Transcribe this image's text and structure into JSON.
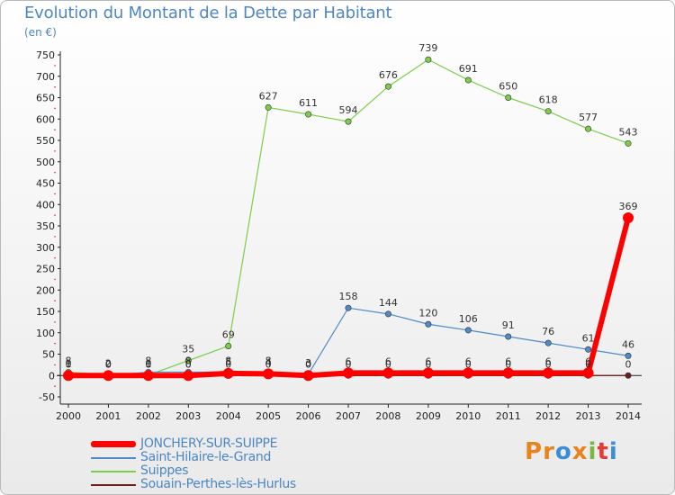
{
  "chart_data": {
    "type": "line",
    "title": "Evolution du Montant de la Dette par Habitant",
    "subtitle": "(en €)",
    "x": [
      "2000",
      "2001",
      "2002",
      "2003",
      "2004",
      "2005",
      "2006",
      "2007",
      "2008",
      "2009",
      "2010",
      "2011",
      "2012",
      "2013",
      "2014"
    ],
    "yticks": [
      -50,
      0,
      50,
      100,
      150,
      200,
      250,
      300,
      350,
      400,
      450,
      500,
      550,
      600,
      650,
      700,
      750
    ],
    "ylim": [
      -50,
      750
    ],
    "grid": false,
    "legend_position": "bottom-left",
    "series": [
      {
        "name": "JONCHERY-SUR-SUIPPE",
        "color": "#ff0000",
        "values": [
          0,
          0,
          0,
          0,
          5,
          4,
          0,
          6,
          6,
          6,
          6,
          6,
          6,
          6,
          369
        ],
        "labels": [
          "0",
          "0",
          "0",
          "0",
          "5",
          "4",
          "0",
          "6",
          "6",
          "6",
          "6",
          "6",
          "6",
          "6",
          "369"
        ]
      },
      {
        "name": "Saint-Hilaire-le-Grand",
        "color": "#4f8bc8",
        "values": [
          1,
          0,
          8,
          8,
          8,
          8,
          3,
          158,
          144,
          120,
          106,
          91,
          76,
          61,
          46
        ],
        "labels": [
          "1",
          "0",
          "8",
          "8",
          "8",
          "8",
          "3",
          "158",
          "144",
          "120",
          "106",
          "91",
          "76",
          "61",
          "46"
        ]
      },
      {
        "name": "Suippes",
        "color": "#7ccd4a",
        "values": [
          8,
          2,
          1,
          35,
          69,
          627,
          611,
          594,
          676,
          739,
          691,
          650,
          618,
          577,
          543
        ],
        "labels": [
          "8",
          "2",
          "1",
          "35",
          "69",
          "627",
          "611",
          "594",
          "676",
          "739",
          "691",
          "650",
          "618",
          "577",
          "543"
        ]
      },
      {
        "name": "Souain-Perthes-lès-Hurlus",
        "color": "#6b1d1d",
        "values": [
          1,
          0,
          0,
          0,
          0,
          0,
          0,
          0,
          0,
          0,
          0,
          0,
          0,
          0,
          0
        ],
        "labels": [
          "1",
          "0",
          "0",
          "0",
          "0",
          "0",
          "0",
          "0",
          "0",
          "0",
          "0",
          "0",
          "0",
          "0",
          "0"
        ]
      }
    ]
  },
  "logo": {
    "text": "Proxiti"
  }
}
